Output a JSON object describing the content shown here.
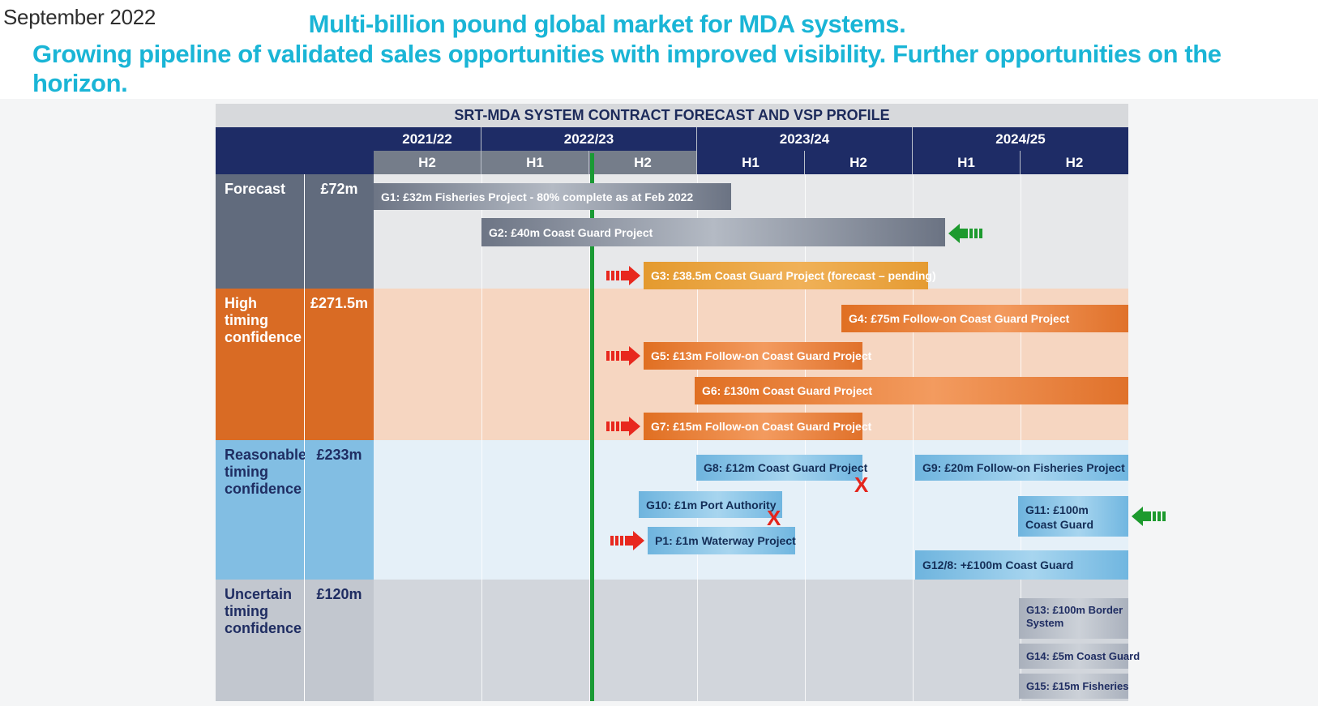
{
  "header": {
    "date": "September 2022",
    "headline_1": "Multi-billion pound global market for MDA systems.",
    "headline_2": "Growing pipeline of validated sales opportunities with improved visibility. Further opportunities on the horizon."
  },
  "table": {
    "title": "SRT-MDA SYSTEM CONTRACT FORECAST AND VSP PROFILE",
    "years": [
      "2021/22",
      "2022/23",
      "2023/24",
      "2024/25"
    ],
    "halves": [
      "H2",
      "H1",
      "H2",
      "H1",
      "H2",
      "H1",
      "H2"
    ],
    "rows": [
      {
        "label": "Forecast",
        "value": "£72m",
        "color": "#616b7d"
      },
      {
        "label": "High timing confidence",
        "value": "£271.5m",
        "color": "#d96b24"
      },
      {
        "label": "Reasonable timing confidence",
        "value": "£233m",
        "color": "#82bee3"
      },
      {
        "label": "Uncertain timing confidence",
        "value": "£120m",
        "color": "#c2c7cf"
      }
    ],
    "bars": [
      "G1: £32m Fisheries Project - 80% complete as at Feb 2022",
      "G2: £40m Coast Guard Project",
      "G3: £38.5m Coast Guard Project (forecast – pending)",
      "G4: £75m Follow-on Coast Guard Project",
      "G5: £13m Follow-on Coast Guard Project",
      "G6: £130m Coast Guard Project",
      "G7: £15m Follow-on Coast Guard Project",
      "G8: £12m Coast Guard Project",
      "G9: £20m Follow-on Fisheries Project",
      "G10: £1m Port Authority",
      "G11: £100m Coast Guard",
      "P1: £1m Waterway Project",
      "G12/8: +£100m Coast Guard",
      "G13: £100m Border System",
      "G14: £5m Coast Guard",
      "G15: £15m Fisheries"
    ],
    "markers": {
      "cross": "X",
      "cross_color": "#e4251c",
      "red_arrow": "#e8281e",
      "green_arrow": "#1d9a2e",
      "today_line": "#1a9a34"
    }
  }
}
